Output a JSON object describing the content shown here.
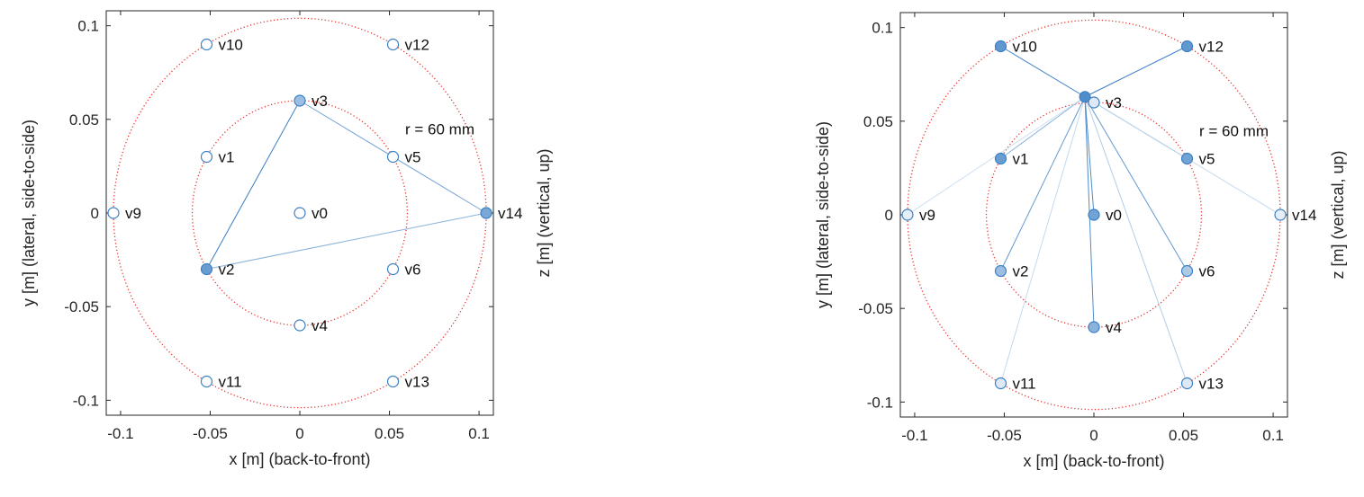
{
  "chart_data": [
    {
      "type": "scatter",
      "title": "",
      "xlabel": "x [m] (back-to-front)",
      "ylabel": "y [m] (lateral, side-to-side)",
      "zlabel": "z [m] (vertical, up)",
      "annotation": "r = 60 mm",
      "xlim": [
        -0.108,
        0.108
      ],
      "ylim": [
        -0.108,
        0.108
      ],
      "xticks": [
        -0.1,
        -0.05,
        0,
        0.05,
        0.1
      ],
      "xticklabels": [
        "-0.1",
        "-0.05",
        "0",
        "0.05",
        "0.1"
      ],
      "yticks": [
        0.1,
        0.05,
        0,
        -0.05,
        -0.1
      ],
      "yticklabels": [
        "0.1",
        "0.05",
        "0",
        "-0.05",
        "-0.1"
      ],
      "circles_radius": [
        0.06,
        0.104
      ],
      "circle_color": "#e8302a",
      "marker_color": "#3b7fc4",
      "points": [
        {
          "label": "v0",
          "x": 0,
          "y": 0,
          "fill": 0
        },
        {
          "label": "v1",
          "x": -0.052,
          "y": 0.03,
          "fill": 0
        },
        {
          "label": "v2",
          "x": -0.052,
          "y": -0.03,
          "fill": 0.9
        },
        {
          "label": "v3",
          "x": 0,
          "y": 0.06,
          "fill": 0.6
        },
        {
          "label": "v4",
          "x": 0,
          "y": -0.06,
          "fill": 0
        },
        {
          "label": "v5",
          "x": 0.052,
          "y": 0.03,
          "fill": 0
        },
        {
          "label": "v6",
          "x": 0.052,
          "y": -0.03,
          "fill": 0
        },
        {
          "label": "v9",
          "x": -0.104,
          "y": 0,
          "fill": 0
        },
        {
          "label": "v10",
          "x": -0.052,
          "y": 0.09,
          "fill": 0
        },
        {
          "label": "v11",
          "x": -0.052,
          "y": -0.09,
          "fill": 0
        },
        {
          "label": "v12",
          "x": 0.052,
          "y": 0.09,
          "fill": 0
        },
        {
          "label": "v13",
          "x": 0.052,
          "y": -0.09,
          "fill": 0
        },
        {
          "label": "v14",
          "x": 0.104,
          "y": 0,
          "fill": 0.8
        }
      ],
      "edges": [
        {
          "from": "v3",
          "to": "v2",
          "weight": 1
        },
        {
          "from": "v3",
          "to": "v14",
          "weight": 0.7
        },
        {
          "from": "v2",
          "to": "v14",
          "weight": 0.6
        }
      ]
    },
    {
      "type": "scatter",
      "title": "",
      "xlabel": "x [m] (back-to-front)",
      "ylabel": "y [m] (lateral, side-to-side)",
      "zlabel": "z [m] (vertical, up)",
      "annotation": "r = 60 mm",
      "xlim": [
        -0.108,
        0.108
      ],
      "ylim": [
        -0.108,
        0.108
      ],
      "xticks": [
        -0.1,
        -0.05,
        0,
        0.05,
        0.1
      ],
      "xticklabels": [
        "-0.1",
        "-0.05",
        "0",
        "0.05",
        "0.1"
      ],
      "yticks": [
        0.1,
        0.05,
        0,
        -0.05,
        -0.1
      ],
      "yticklabels": [
        "0.1",
        "0.05",
        "0",
        "-0.05",
        "-0.1"
      ],
      "circles_radius": [
        0.06,
        0.104
      ],
      "circle_color": "#e8302a",
      "marker_color": "#3b7fc4",
      "hub": {
        "x": -0.005,
        "y": 0.063
      },
      "points": [
        {
          "label": "v0",
          "x": 0,
          "y": 0,
          "fill": 0.85
        },
        {
          "label": "v1",
          "x": -0.052,
          "y": 0.03,
          "fill": 0.9
        },
        {
          "label": "v2",
          "x": -0.052,
          "y": -0.03,
          "fill": 0.6
        },
        {
          "label": "v3",
          "x": 0,
          "y": 0.06,
          "fill": 0.2
        },
        {
          "label": "v4",
          "x": 0,
          "y": -0.06,
          "fill": 0.7
        },
        {
          "label": "v5",
          "x": 0.052,
          "y": 0.03,
          "fill": 0.85
        },
        {
          "label": "v6",
          "x": 0.052,
          "y": -0.03,
          "fill": 0.5
        },
        {
          "label": "v9",
          "x": -0.104,
          "y": 0,
          "fill": 0.15
        },
        {
          "label": "v10",
          "x": -0.052,
          "y": 0.09,
          "fill": 0.95
        },
        {
          "label": "v11",
          "x": -0.052,
          "y": -0.09,
          "fill": 0.2
        },
        {
          "label": "v12",
          "x": 0.052,
          "y": 0.09,
          "fill": 0.95
        },
        {
          "label": "v13",
          "x": 0.052,
          "y": -0.09,
          "fill": 0.2
        },
        {
          "label": "v14",
          "x": 0.104,
          "y": 0,
          "fill": 0.15
        }
      ],
      "spokes": [
        {
          "to": "v10",
          "weight": 1
        },
        {
          "to": "v12",
          "weight": 1
        },
        {
          "to": "v1",
          "weight": 0.6
        },
        {
          "to": "v5",
          "weight": 0.9
        },
        {
          "to": "v9",
          "weight": 0.25
        },
        {
          "to": "v14",
          "weight": 0.3
        },
        {
          "to": "v0",
          "weight": 0.9
        },
        {
          "to": "v2",
          "weight": 0.8
        },
        {
          "to": "v6",
          "weight": 0.8
        },
        {
          "to": "v4",
          "weight": 0.9
        },
        {
          "to": "v11",
          "weight": 0.3
        },
        {
          "to": "v13",
          "weight": 0.4
        }
      ]
    }
  ]
}
